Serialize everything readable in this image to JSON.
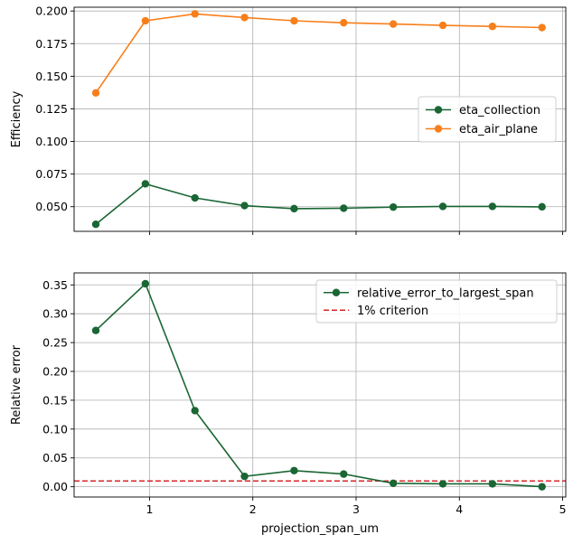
{
  "chart_data": [
    {
      "type": "line",
      "title": "",
      "xlabel": "",
      "ylabel": "Efficiency",
      "xlim": [
        0.27,
        5.03
      ],
      "ylim": [
        0.0311,
        0.2029
      ],
      "yticks": [
        0.05,
        0.075,
        0.1,
        0.125,
        0.15,
        0.175,
        0.2
      ],
      "ytick_labels": [
        "0.050",
        "0.075",
        "0.100",
        "0.125",
        "0.150",
        "0.175",
        "0.200"
      ],
      "xticks": [
        1,
        2,
        3,
        4,
        5
      ],
      "xtick_labels_visible": false,
      "grid": true,
      "legend_position": "center-right",
      "x": [
        0.48,
        0.96,
        1.44,
        1.92,
        2.4,
        2.88,
        3.36,
        3.84,
        4.32,
        4.8
      ],
      "series": [
        {
          "name": "eta_collection",
          "color": "#1a6634",
          "marker": "circle",
          "values": [
            0.0365,
            0.0675,
            0.0567,
            0.0508,
            0.0485,
            0.0488,
            0.0497,
            0.0502,
            0.0502,
            0.0499
          ]
        },
        {
          "name": "eta_air_plane",
          "color": "#f77f1b",
          "marker": "circle",
          "values": [
            0.1372,
            0.1925,
            0.1978,
            0.195,
            0.1925,
            0.191,
            0.19,
            0.189,
            0.1882,
            0.1873
          ]
        }
      ]
    },
    {
      "type": "line",
      "title": "",
      "xlabel": "projection_span_um",
      "ylabel": "Relative error",
      "xlim": [
        0.27,
        5.03
      ],
      "ylim": [
        -0.0178,
        0.3708
      ],
      "yticks": [
        0.0,
        0.05,
        0.1,
        0.15,
        0.2,
        0.25,
        0.3,
        0.35
      ],
      "ytick_labels": [
        "0.00",
        "0.05",
        "0.10",
        "0.15",
        "0.20",
        "0.25",
        "0.30",
        "0.35"
      ],
      "xticks": [
        1,
        2,
        3,
        4,
        5
      ],
      "xtick_labels": [
        "1",
        "2",
        "3",
        "4",
        "5"
      ],
      "grid": true,
      "legend_position": "top-right",
      "x": [
        0.48,
        0.96,
        1.44,
        1.92,
        2.4,
        2.88,
        3.36,
        3.84,
        4.32,
        4.8
      ],
      "series": [
        {
          "name": "relative_error_to_largest_span",
          "color": "#1a6634",
          "marker": "circle",
          "values": [
            0.271,
            0.352,
            0.132,
            0.018,
            0.028,
            0.022,
            0.006,
            0.005,
            0.005,
            0.0
          ]
        }
      ],
      "reference_lines": [
        {
          "name": "1% criterion",
          "color": "#d62728",
          "style": "dashed",
          "y": 0.01
        }
      ]
    }
  ]
}
